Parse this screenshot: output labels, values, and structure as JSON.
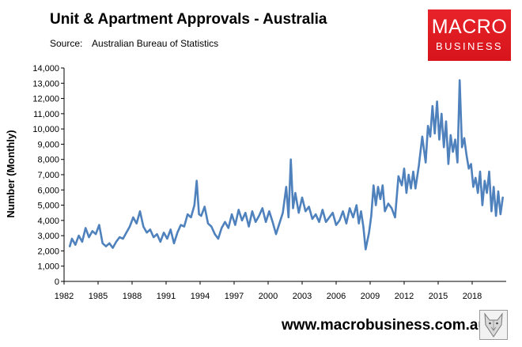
{
  "header": {
    "title": "Unit & Apartment Approvals - Australia",
    "source_label": "Source:",
    "source_value": "Australian Bureau of Statistics"
  },
  "logo": {
    "line1": "MACRO",
    "line2": "BUSINESS",
    "color": "#e11b22"
  },
  "footer": {
    "website": "www.macrobusiness.com.au",
    "badge_icon": "wolf-icon"
  },
  "chart_data": {
    "type": "line",
    "title": "Unit & Apartment Approvals - Australia",
    "ylabel": "Number (Monthly)",
    "xlabel": "",
    "ylim": [
      0,
      14000
    ],
    "xlim": [
      1982,
      2021
    ],
    "y_ticks": [
      "0",
      "1,000",
      "2,000",
      "3,000",
      "4,000",
      "5,000",
      "6,000",
      "7,000",
      "8,000",
      "9,000",
      "10,000",
      "11,000",
      "12,000",
      "13,000",
      "14,000"
    ],
    "x_ticks": [
      "1982",
      "1985",
      "1988",
      "1991",
      "1994",
      "1997",
      "2000",
      "2003",
      "2006",
      "2009",
      "2012",
      "2015",
      "2018"
    ],
    "grid": false,
    "legend": "none",
    "series": [
      {
        "color": "#4f81bd",
        "x": [
          1982.5,
          1982.7,
          1983.0,
          1983.3,
          1983.6,
          1983.9,
          1984.2,
          1984.5,
          1984.8,
          1985.1,
          1985.4,
          1985.7,
          1986.0,
          1986.3,
          1986.6,
          1986.9,
          1987.2,
          1987.5,
          1987.8,
          1988.1,
          1988.4,
          1988.7,
          1989.0,
          1989.3,
          1989.6,
          1989.9,
          1990.2,
          1990.5,
          1990.8,
          1991.1,
          1991.4,
          1991.7,
          1992.0,
          1992.3,
          1992.6,
          1992.9,
          1993.2,
          1993.5,
          1993.7,
          1993.9,
          1994.1,
          1994.4,
          1994.7,
          1995.0,
          1995.3,
          1995.6,
          1995.9,
          1996.2,
          1996.5,
          1996.8,
          1997.1,
          1997.4,
          1997.7,
          1998.0,
          1998.3,
          1998.6,
          1998.9,
          1999.2,
          1999.5,
          1999.8,
          2000.1,
          2000.4,
          2000.7,
          2001.0,
          2001.3,
          2001.6,
          2001.8,
          2002.0,
          2002.2,
          2002.4,
          2002.7,
          2003.0,
          2003.3,
          2003.6,
          2003.9,
          2004.2,
          2004.5,
          2004.8,
          2005.1,
          2005.4,
          2005.7,
          2006.0,
          2006.3,
          2006.6,
          2006.9,
          2007.2,
          2007.5,
          2007.8,
          2008.0,
          2008.2,
          2008.4,
          2008.6,
          2008.9,
          2009.1,
          2009.3,
          2009.5,
          2009.7,
          2009.9,
          2010.1,
          2010.3,
          2010.6,
          2010.9,
          2011.2,
          2011.5,
          2011.8,
          2012.0,
          2012.2,
          2012.4,
          2012.6,
          2012.8,
          2013.0,
          2013.3,
          2013.6,
          2013.9,
          2014.1,
          2014.3,
          2014.5,
          2014.7,
          2014.9,
          2015.1,
          2015.3,
          2015.5,
          2015.7,
          2015.9,
          2016.1,
          2016.3,
          2016.5,
          2016.7,
          2016.9,
          2017.1,
          2017.3,
          2017.5,
          2017.7,
          2017.9,
          2018.1,
          2018.3,
          2018.5,
          2018.7,
          2018.9,
          2019.1,
          2019.3,
          2019.5,
          2019.7,
          2019.9,
          2020.1,
          2020.3,
          2020.5,
          2020.7
        ],
        "values": [
          2300,
          2800,
          2400,
          3000,
          2600,
          3500,
          2900,
          3300,
          3100,
          3700,
          2500,
          2300,
          2500,
          2200,
          2600,
          2900,
          2800,
          3200,
          3600,
          4200,
          3800,
          4600,
          3600,
          3200,
          3400,
          2900,
          3100,
          2600,
          3200,
          2800,
          3400,
          2500,
          3200,
          3700,
          3600,
          4400,
          4200,
          5000,
          6600,
          4400,
          4300,
          4900,
          3800,
          3600,
          3100,
          2800,
          3500,
          3900,
          3500,
          4400,
          3700,
          4700,
          4000,
          4500,
          3600,
          4600,
          3900,
          4300,
          4800,
          3900,
          4600,
          3900,
          3100,
          3800,
          4500,
          6200,
          4200,
          8000,
          4800,
          5800,
          4500,
          5500,
          4600,
          4900,
          4100,
          4400,
          3900,
          4700,
          3900,
          4200,
          4500,
          3700,
          4000,
          4600,
          3800,
          4800,
          4200,
          5000,
          3800,
          4600,
          3600,
          2100,
          3200,
          4300,
          6300,
          5000,
          6200,
          5400,
          6300,
          4600,
          5100,
          4800,
          4200,
          6900,
          6300,
          7400,
          5800,
          7000,
          6100,
          7200,
          6100,
          7600,
          9500,
          7800,
          10200,
          9500,
          11500,
          9700,
          11800,
          9300,
          11000,
          8800,
          10500,
          7700,
          9600,
          8500,
          9300,
          7800,
          13200,
          8800,
          9400,
          8300,
          7400,
          7700,
          6200,
          6800,
          5800,
          7200,
          5000,
          6600,
          5800,
          7200,
          4600,
          6200,
          4300,
          5900,
          4400,
          5500
        ]
      }
    ]
  }
}
